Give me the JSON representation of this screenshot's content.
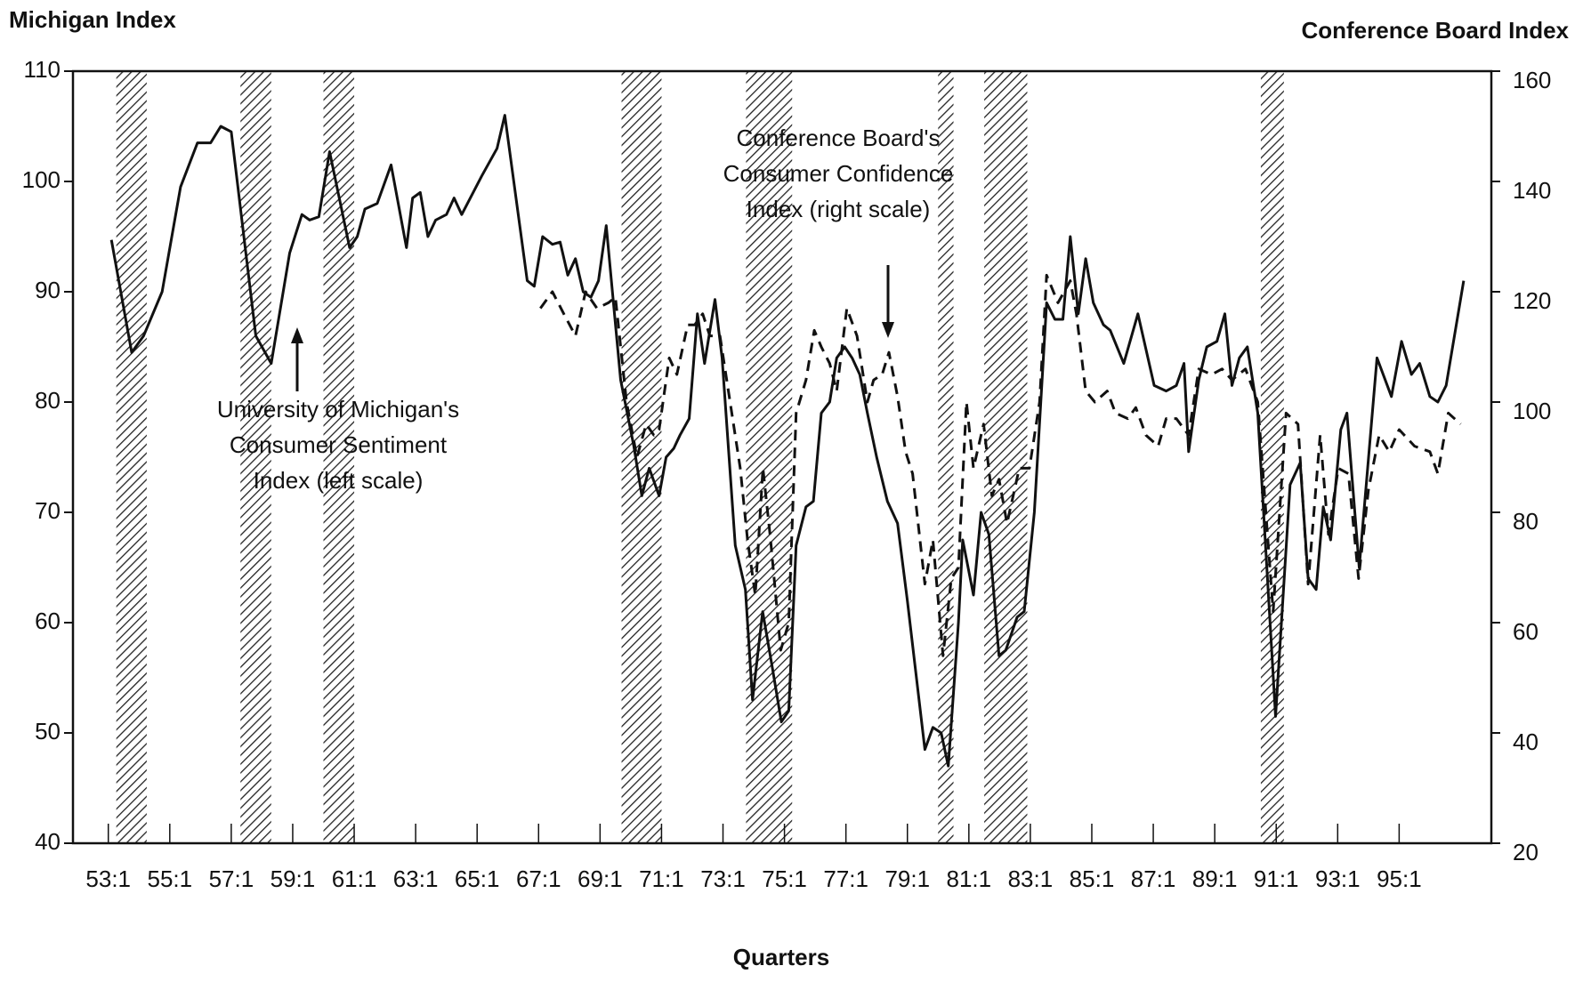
{
  "chart_data": {
    "type": "line",
    "title_left": "Michigan Index",
    "title_right": "Conference Board Index",
    "xlabel": "Quarters",
    "annotations": [
      {
        "lines": [
          "University of Michigan's",
          "Consumer Sentiment",
          "Index  (left scale)"
        ]
      },
      {
        "lines": [
          "Conference Board's",
          "Consumer Confidence",
          "Index (right scale)"
        ]
      }
    ],
    "xlim": [
      51.85,
      98
    ],
    "xticks": [
      {
        "value": 53,
        "label": "53:1"
      },
      {
        "value": 55,
        "label": "55:1"
      },
      {
        "value": 57,
        "label": "57:1"
      },
      {
        "value": 59,
        "label": "59:1"
      },
      {
        "value": 61,
        "label": "61:1"
      },
      {
        "value": 63,
        "label": "63:1"
      },
      {
        "value": 65,
        "label": "65:1"
      },
      {
        "value": 67,
        "label": "67:1"
      },
      {
        "value": 69,
        "label": "69:1"
      },
      {
        "value": 71,
        "label": "71:1"
      },
      {
        "value": 73,
        "label": "73:1"
      },
      {
        "value": 75,
        "label": "75:1"
      },
      {
        "value": 77,
        "label": "77:1"
      },
      {
        "value": 79,
        "label": "79:1"
      },
      {
        "value": 81,
        "label": "81:1"
      },
      {
        "value": 83,
        "label": "83:1"
      },
      {
        "value": 85,
        "label": "85:1"
      },
      {
        "value": 87,
        "label": "87:1"
      },
      {
        "value": 89,
        "label": "89:1"
      },
      {
        "value": 91,
        "label": "91:1"
      },
      {
        "value": 93,
        "label": "93:1"
      },
      {
        "value": 95,
        "label": "95:1"
      }
    ],
    "ylim": [
      40,
      110
    ],
    "yticks": [
      40,
      50,
      60,
      70,
      80,
      90,
      100,
      110
    ],
    "y2lim": [
      20,
      160
    ],
    "y2ticks": [
      20,
      40,
      60,
      80,
      100,
      120,
      140,
      160
    ],
    "shaded_periods": [
      [
        53.26,
        54.25
      ],
      [
        57.3,
        58.3
      ],
      [
        60.0,
        61.0
      ],
      [
        69.7,
        71.0
      ],
      [
        73.75,
        75.25
      ],
      [
        80.0,
        80.5
      ],
      [
        81.5,
        82.9
      ],
      [
        90.5,
        91.25
      ]
    ],
    "series": [
      {
        "color": "#111111",
        "dash": false,
        "x": [
          53.1,
          53.76,
          54.15,
          54.75,
          55.35,
          55.9,
          56.33,
          56.66,
          57.0,
          57.8,
          58.3,
          58.9,
          59.3,
          59.55,
          59.85,
          60.2,
          60.85,
          61.1,
          61.35,
          61.75,
          62.2,
          62.7,
          62.9,
          63.15,
          63.4,
          63.65,
          64.0,
          64.25,
          64.5,
          65.15,
          65.65,
          65.9,
          66.63,
          66.86,
          67.13,
          67.45,
          67.7,
          67.95,
          68.2,
          68.45,
          68.7,
          68.95,
          69.2,
          69.67,
          70.1,
          70.36,
          70.6,
          70.92,
          71.15,
          71.4,
          71.6,
          71.9,
          72.17,
          72.4,
          72.74,
          72.97,
          73.4,
          73.73,
          73.96,
          74.29,
          74.6,
          74.9,
          75.14,
          75.38,
          75.7,
          75.94,
          76.2,
          76.47,
          76.7,
          76.96,
          77.2,
          77.45,
          77.7,
          78.0,
          78.35,
          78.68,
          79.0,
          79.57,
          79.83,
          80.1,
          80.33,
          80.66,
          80.8,
          81.15,
          81.4,
          81.65,
          81.98,
          82.2,
          82.57,
          82.8,
          83.13,
          83.53,
          83.8,
          84.06,
          84.3,
          84.56,
          84.8,
          85.05,
          85.38,
          85.6,
          86.04,
          86.5,
          87.03,
          87.42,
          87.75,
          88.0,
          88.15,
          88.48,
          88.74,
          89.07,
          89.33,
          89.56,
          89.8,
          90.06,
          90.4,
          90.98,
          91.45,
          91.78,
          92.04,
          92.3,
          92.53,
          92.77,
          93.1,
          93.3,
          93.7,
          94.28,
          94.75,
          95.08,
          95.4,
          95.67,
          96.0,
          96.26,
          96.53,
          97.1
        ],
        "values": [
          94.7,
          84.5,
          86,
          90,
          99.5,
          103.5,
          103.5,
          105,
          104.5,
          86,
          83.5,
          93.5,
          97,
          96.5,
          96.8,
          102.7,
          94,
          95,
          97.5,
          98,
          101.5,
          94,
          98.5,
          99,
          95,
          96.5,
          97,
          98.5,
          97,
          100.5,
          103,
          106,
          91,
          90.5,
          95,
          94.3,
          94.5,
          91.5,
          93,
          90,
          89.5,
          91,
          96,
          82,
          76,
          71.5,
          74,
          71.5,
          75,
          75.8,
          77,
          78.5,
          88,
          83.5,
          89.3,
          84,
          67,
          63,
          53,
          61,
          56,
          51,
          52,
          67,
          70.5,
          71,
          79,
          80,
          84,
          85,
          84,
          82.5,
          79,
          75,
          71,
          69,
          62,
          48.5,
          50.5,
          50,
          47,
          60,
          67.5,
          62.5,
          70,
          68,
          57,
          57.5,
          60.5,
          61,
          70,
          89,
          87.5,
          87.5,
          95,
          88,
          93,
          89,
          87,
          86.5,
          83.5,
          88,
          81.5,
          81,
          81.5,
          83.5,
          75.5,
          82,
          85,
          85.5,
          88,
          81.5,
          84,
          85,
          79,
          51.5,
          72.5,
          74.5,
          64,
          63,
          70.5,
          67.5,
          77.5,
          79,
          65,
          84,
          80.5,
          85.5,
          82.5,
          83.5,
          80.5,
          80,
          81.5,
          91
        ]
      },
      {
        "color": "#111111",
        "dash": true,
        "axis": "y2",
        "x": [
          67.06,
          67.45,
          67.82,
          68.2,
          68.53,
          68.9,
          69.27,
          69.5,
          69.86,
          70.2,
          70.5,
          70.75,
          70.92,
          71.25,
          71.5,
          71.85,
          72.08,
          72.34,
          72.57,
          72.9,
          73.23,
          73.56,
          73.8,
          74.05,
          74.3,
          74.55,
          74.88,
          75.14,
          75.38,
          75.7,
          75.97,
          76.2,
          76.47,
          76.7,
          77.03,
          77.36,
          77.7,
          77.9,
          78.18,
          78.4,
          78.68,
          78.94,
          79.17,
          79.57,
          79.83,
          80.16,
          80.43,
          80.66,
          80.92,
          81.15,
          81.48,
          81.75,
          81.98,
          82.24,
          82.64,
          82.97,
          83.3,
          83.53,
          83.9,
          84.3,
          84.5,
          84.8,
          85.1,
          85.5,
          85.77,
          86.17,
          86.43,
          86.76,
          87.16,
          87.42,
          87.75,
          88.15,
          88.48,
          88.9,
          89.24,
          89.56,
          90.0,
          90.4,
          90.9,
          91.32,
          91.71,
          92.04,
          92.43,
          92.7,
          93.02,
          93.35,
          93.68,
          94.0,
          94.35,
          94.68,
          95.0,
          95.5,
          96.0,
          96.26,
          96.6,
          97.0
        ],
        "values": [
          117,
          120,
          116,
          112,
          120,
          117,
          118,
          119,
          100,
          90,
          96,
          94,
          95,
          108,
          105,
          114,
          114,
          116,
          112,
          112,
          100,
          88,
          75,
          65,
          88,
          75,
          55,
          60,
          98,
          104,
          113,
          110,
          107,
          102,
          117,
          112,
          100,
          104,
          105,
          109,
          101,
          91,
          87,
          67,
          75,
          54,
          68,
          70,
          100,
          88,
          96,
          83,
          86,
          78,
          88,
          88,
          100,
          123,
          118,
          122,
          116,
          102,
          100,
          102,
          98,
          97,
          99,
          94,
          92,
          97,
          97,
          94,
          106,
          105,
          106,
          104,
          106,
          100,
          62,
          98,
          96,
          67,
          94,
          76,
          88,
          87,
          68,
          84,
          94,
          91,
          95,
          92,
          91,
          87,
          98,
          96
        ]
      }
    ]
  }
}
